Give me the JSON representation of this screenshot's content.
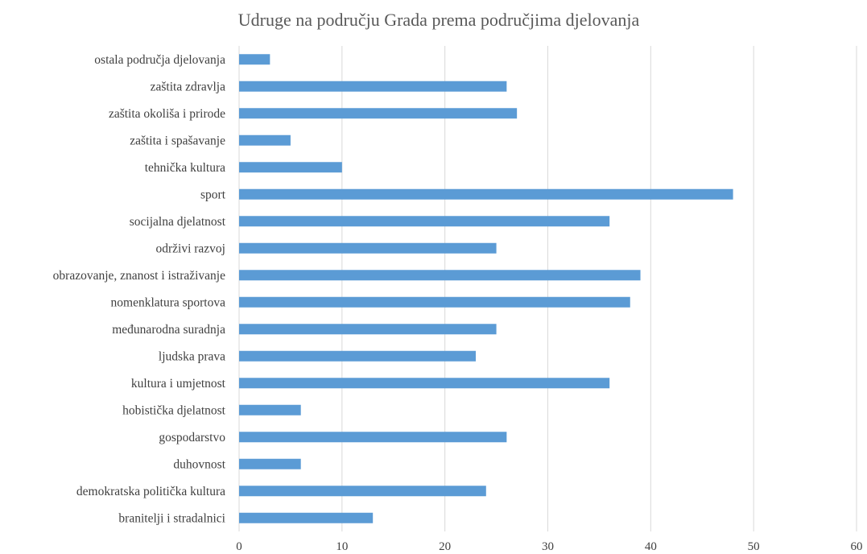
{
  "chart_data": {
    "type": "bar",
    "orientation": "horizontal",
    "title": "Udruge na području Grada prema područjima djelovanja",
    "xlabel": "",
    "ylabel": "",
    "xlim": [
      0,
      60
    ],
    "x_ticks": [
      0,
      10,
      20,
      30,
      40,
      50,
      60
    ],
    "grid": true,
    "legend": "none",
    "bar_color": "#5B9BD5",
    "categories": [
      "ostala područja djelovanja",
      "zaštita zdravlja",
      "zaštita okoliša i prirode",
      "zaštita i spašavanje",
      "tehnička kultura",
      "sport",
      "socijalna djelatnost",
      "održivi razvoj",
      "obrazovanje, znanost i istraživanje",
      "nomenklatura sportova",
      "međunarodna suradnja",
      "ljudska prava",
      "kultura i umjetnost",
      "hobistička djelatnost",
      "gospodarstvo",
      "duhovnost",
      "demokratska politička kultura",
      "branitelji i stradalnici"
    ],
    "values": [
      3,
      26,
      27,
      5,
      10,
      48,
      36,
      25,
      39,
      38,
      25,
      23,
      36,
      6,
      26,
      6,
      24,
      13
    ]
  }
}
